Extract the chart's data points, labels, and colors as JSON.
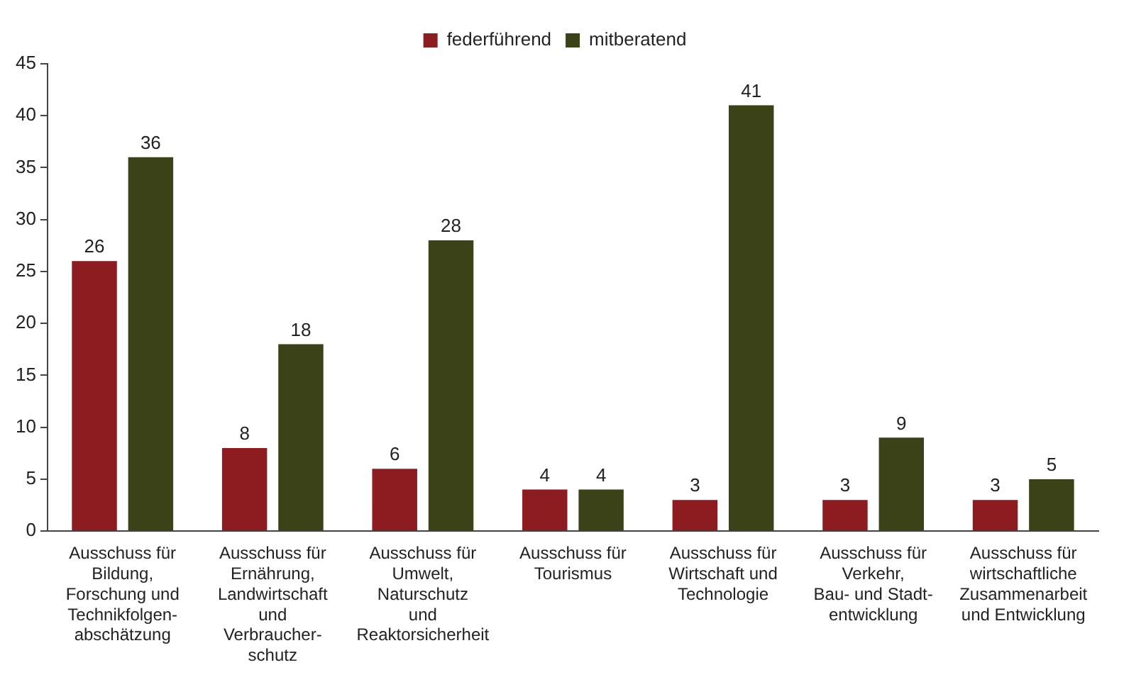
{
  "chart_data": {
    "type": "bar",
    "categories": [
      "Ausschuss für\nBildung,\nForschung und\nTechnikfolgen-\nabschätzung",
      "Ausschuss für\nErnährung,\nLandwirtschaft\nund\nVerbraucher-\nschutz",
      "Ausschuss für\nUmwelt,\nNaturschutz\nund\nReaktorsicherheit",
      "Ausschuss für\nTourismus",
      "Ausschuss für\nWirtschaft und\nTechnologie",
      "Ausschuss für\nVerkehr,\nBau- und Stadt-\nentwicklung",
      "Ausschuss für\nwirtschaftliche\nZusammenarbeit\nund Entwicklung"
    ],
    "series": [
      {
        "name": "federführend",
        "color": "#8c1c1f",
        "values": [
          26,
          8,
          6,
          4,
          3,
          3,
          3
        ]
      },
      {
        "name": "mitberatend",
        "color": "#3b4217",
        "values": [
          36,
          18,
          28,
          4,
          41,
          9,
          5
        ]
      }
    ],
    "ylim": [
      0,
      45
    ],
    "yticks": [
      0,
      5,
      10,
      15,
      20,
      25,
      30,
      35,
      40,
      45
    ],
    "grid": false,
    "legend": "top",
    "data_labels": true
  }
}
